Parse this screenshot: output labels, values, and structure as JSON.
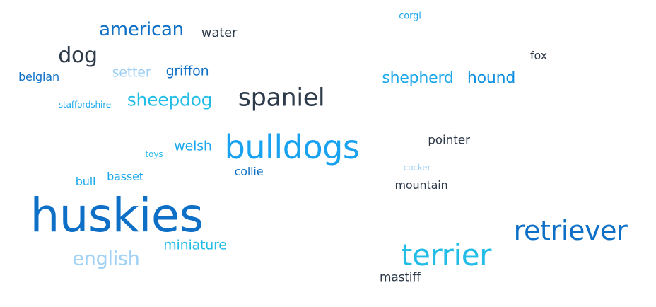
{
  "words": [
    {
      "text": "corgi",
      "color": "#1aa7ec"
    },
    {
      "text": "american",
      "color": "#0d6fc6"
    },
    {
      "text": "water",
      "color": "#2d3a4a"
    },
    {
      "text": "dog",
      "color": "#2d3a4a"
    },
    {
      "text": "fox",
      "color": "#2d3a4a"
    },
    {
      "text": "belgian",
      "color": "#0d6fc6"
    },
    {
      "text": "setter",
      "color": "#9fd0f5"
    },
    {
      "text": "griffon",
      "color": "#0d6fc6"
    },
    {
      "text": "shepherd",
      "color": "#1aa7ec"
    },
    {
      "text": "hound",
      "color": "#0d8fe0"
    },
    {
      "text": "staffordshire",
      "color": "#1aa7ec"
    },
    {
      "text": "sheepdog",
      "color": "#22bde6"
    },
    {
      "text": "spaniel",
      "color": "#2d3a4a"
    },
    {
      "text": "pointer",
      "color": "#2d3a4a"
    },
    {
      "text": "toys",
      "color": "#22bde6"
    },
    {
      "text": "welsh",
      "color": "#1aa7ec"
    },
    {
      "text": "bulldogs",
      "color": "#18a2f0"
    },
    {
      "text": "collie",
      "color": "#0d6fc6"
    },
    {
      "text": "cocker",
      "color": "#9fd0f5"
    },
    {
      "text": "bull",
      "color": "#1aa7ec"
    },
    {
      "text": "basset",
      "color": "#1aa7ec"
    },
    {
      "text": "mountain",
      "color": "#2d3a4a"
    },
    {
      "text": "huskies",
      "color": "#0d6fc6"
    },
    {
      "text": "retriever",
      "color": "#0d6fc6"
    },
    {
      "text": "english",
      "color": "#9fd0f5"
    },
    {
      "text": "miniature",
      "color": "#22bde6"
    },
    {
      "text": "terrier",
      "color": "#22bde6"
    },
    {
      "text": "mastiff",
      "color": "#2d3a4a"
    }
  ]
}
